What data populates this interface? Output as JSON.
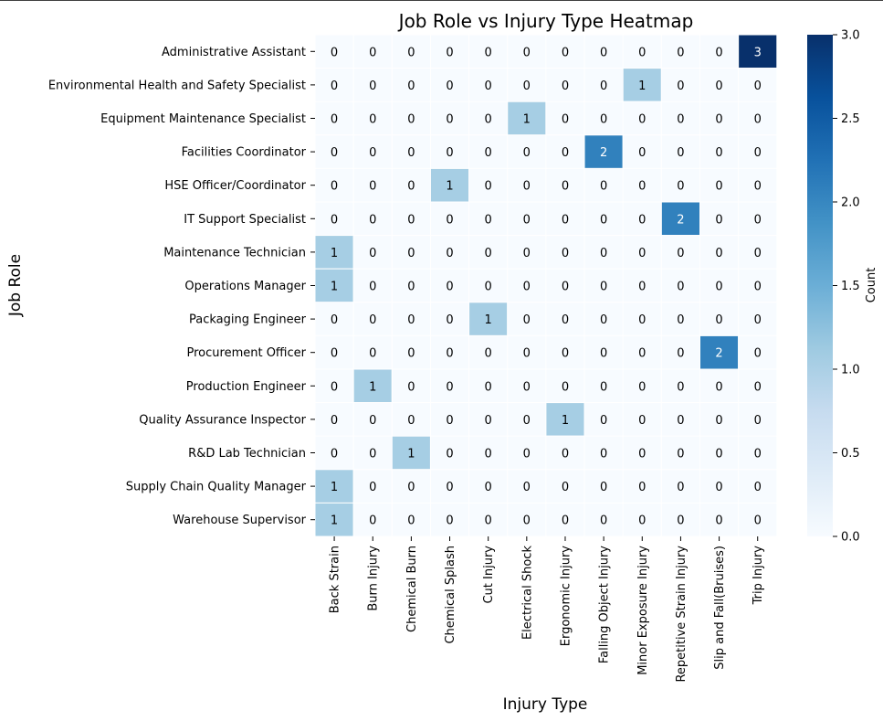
{
  "chart_data": {
    "type": "heatmap",
    "title": "Job Role vs Injury Type Heatmap",
    "xlabel": "Injury Type",
    "ylabel": "Job Role",
    "x_categories": [
      "Back Strain",
      "Burn Injury",
      "Chemical Burn",
      "Chemical Splash",
      "Cut Injury",
      "Electrical Shock",
      "Ergonomic Injury",
      "Falling Object Injury",
      "Minor Exposure Injury",
      "Repetitive Strain Injury",
      "Slip and Fall(Bruises)",
      "Trip Injury"
    ],
    "y_categories": [
      "Administrative Assistant",
      "Environmental Health and Safety Specialist",
      "Equipment Maintenance Specialist",
      "Facilities Coordinator",
      "HSE Officer/Coordinator",
      "IT Support Specialist",
      "Maintenance Technician",
      "Operations Manager",
      "Packaging Engineer",
      "Procurement Officer",
      "Production Engineer",
      "Quality Assurance Inspector",
      "R&D Lab Technician",
      "Supply Chain Quality Manager",
      "Warehouse Supervisor"
    ],
    "values": [
      [
        0,
        0,
        0,
        0,
        0,
        0,
        0,
        0,
        0,
        0,
        0,
        3
      ],
      [
        0,
        0,
        0,
        0,
        0,
        0,
        0,
        0,
        1,
        0,
        0,
        0
      ],
      [
        0,
        0,
        0,
        0,
        0,
        1,
        0,
        0,
        0,
        0,
        0,
        0
      ],
      [
        0,
        0,
        0,
        0,
        0,
        0,
        0,
        2,
        0,
        0,
        0,
        0
      ],
      [
        0,
        0,
        0,
        1,
        0,
        0,
        0,
        0,
        0,
        0,
        0,
        0
      ],
      [
        0,
        0,
        0,
        0,
        0,
        0,
        0,
        0,
        0,
        2,
        0,
        0
      ],
      [
        1,
        0,
        0,
        0,
        0,
        0,
        0,
        0,
        0,
        0,
        0,
        0
      ],
      [
        1,
        0,
        0,
        0,
        0,
        0,
        0,
        0,
        0,
        0,
        0,
        0
      ],
      [
        0,
        0,
        0,
        0,
        1,
        0,
        0,
        0,
        0,
        0,
        0,
        0
      ],
      [
        0,
        0,
        0,
        0,
        0,
        0,
        0,
        0,
        0,
        0,
        2,
        0
      ],
      [
        0,
        1,
        0,
        0,
        0,
        0,
        0,
        0,
        0,
        0,
        0,
        0
      ],
      [
        0,
        0,
        0,
        0,
        0,
        0,
        1,
        0,
        0,
        0,
        0,
        0
      ],
      [
        0,
        0,
        1,
        0,
        0,
        0,
        0,
        0,
        0,
        0,
        0,
        0
      ],
      [
        1,
        0,
        0,
        0,
        0,
        0,
        0,
        0,
        0,
        0,
        0,
        0
      ],
      [
        1,
        0,
        0,
        0,
        0,
        0,
        0,
        0,
        0,
        0,
        0,
        0
      ]
    ],
    "colorbar": {
      "label": "Count",
      "range": [
        0,
        3
      ],
      "ticks": [
        "0.0",
        "0.5",
        "1.0",
        "1.5",
        "2.0",
        "2.5",
        "3.0"
      ]
    },
    "colormap": "Blues",
    "colors": {
      "0": "#f7fbff",
      "1": "#a6cee4",
      "2": "#3181bd",
      "3": "#08306b"
    }
  }
}
